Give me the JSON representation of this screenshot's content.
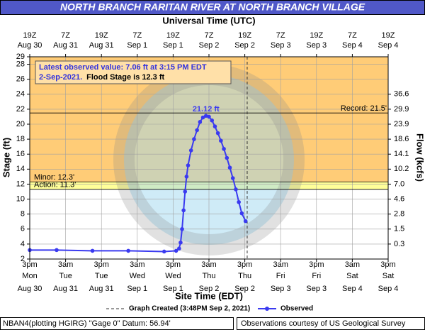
{
  "chart_data": {
    "type": "line",
    "title": "NORTH BRANCH RARITAN RIVER AT NORTH BRANCH VILLAGE",
    "x2_label": "Universal Time (UTC)",
    "x_label": "Site Time (EDT)",
    "y_label": "Stage (ft)",
    "y2_label": "Flow (kcfs)",
    "xlim": [
      "Aug 30 15:00",
      "Sep 4 15:00"
    ],
    "xticks": [
      {
        "value": "Aug 30 15:00",
        "label": [
          "3pm",
          "Mon",
          "Aug 30"
        ]
      },
      {
        "value": "Aug 31 03:00",
        "label": [
          "3am",
          "Tue",
          "Aug 31"
        ]
      },
      {
        "value": "Aug 31 15:00",
        "label": [
          "3pm",
          "Tue",
          "Aug 31"
        ]
      },
      {
        "value": "Sep 1 03:00",
        "label": [
          "3am",
          "Wed",
          "Sep 1"
        ]
      },
      {
        "value": "Sep 1 15:00",
        "label": [
          "3pm",
          "Wed",
          "Sep 1"
        ]
      },
      {
        "value": "Sep 2 03:00",
        "label": [
          "3am",
          "Thu",
          "Sep 2"
        ]
      },
      {
        "value": "Sep 2 15:00",
        "label": [
          "3pm",
          "Thu",
          "Sep 2"
        ]
      },
      {
        "value": "Sep 3 03:00",
        "label": [
          "3am",
          "Fri",
          "Sep 3"
        ]
      },
      {
        "value": "Sep 3 15:00",
        "label": [
          "3pm",
          "Fri",
          "Sep 3"
        ]
      },
      {
        "value": "Sep 4 03:00",
        "label": [
          "3am",
          "Sat",
          "Sep 4"
        ]
      },
      {
        "value": "Sep 4 15:00",
        "label": [
          "3pm",
          "Sat",
          "Sep 4"
        ]
      }
    ],
    "x2ticks": [
      {
        "value": "Aug 30 15:00",
        "label": [
          "19Z",
          "Aug 30"
        ]
      },
      {
        "value": "Aug 31 03:00",
        "label": [
          "7Z",
          "Aug 31"
        ]
      },
      {
        "value": "Aug 31 15:00",
        "label": [
          "19Z",
          "Aug 31"
        ]
      },
      {
        "value": "Sep 1 03:00",
        "label": [
          "7Z",
          "Sep 1"
        ]
      },
      {
        "value": "Sep 1 15:00",
        "label": [
          "19Z",
          "Sep 1"
        ]
      },
      {
        "value": "Sep 2 03:00",
        "label": [
          "7Z",
          "Sep 2"
        ]
      },
      {
        "value": "Sep 2 15:00",
        "label": [
          "19Z",
          "Sep 2"
        ]
      },
      {
        "value": "Sep 3 03:00",
        "label": [
          "7Z",
          "Sep 3"
        ]
      },
      {
        "value": "Sep 3 15:00",
        "label": [
          "19Z",
          "Sep 3"
        ]
      },
      {
        "value": "Sep 4 03:00",
        "label": [
          "7Z",
          "Sep 4"
        ]
      },
      {
        "value": "Sep 4 15:00",
        "label": [
          "19Z",
          "Sep 4"
        ]
      }
    ],
    "ylim": [
      2,
      29
    ],
    "yticks": [
      2,
      4,
      6,
      8,
      10,
      12,
      14,
      16,
      18,
      20,
      22,
      24,
      26,
      28,
      29
    ],
    "y2ticks": [
      0.3,
      1.5,
      2.8,
      4.6,
      {
        "value": 7,
        "label": "7.0"
      },
      10.2,
      14.1,
      18.6,
      23.9,
      29.9,
      36.6
    ],
    "grid": true,
    "thresholds": [
      {
        "label": "Record: 21.5'",
        "value": 21.5
      },
      {
        "label": "Minor: 12.3'",
        "value": 12.3,
        "color": "#ffcc77"
      },
      {
        "label": "Action: 11.3'",
        "value": 11.3,
        "color": "#ffff99"
      }
    ],
    "info": {
      "line1": "Latest observed value: 7.06 ft at 3:15 PM EDT",
      "date": "2-Sep-2021.",
      "flood_stage": "Flood Stage is 12.3 ft"
    },
    "graph_created": {
      "label": "Graph Created (3:48PM Sep 2, 2021)",
      "x": "Sep 2 15:48"
    },
    "series": [
      {
        "name": "Observed",
        "color": "#3a3af0",
        "x": [
          "Aug 30 15:00",
          "Aug 31 00:00",
          "Aug 31 12:00",
          "Sep 1 00:00",
          "Sep 1 12:00",
          "Sep 1 16:00",
          "Sep 1 17:00",
          "Sep 1 17:30",
          "Sep 1 18:00",
          "Sep 1 18:30",
          "Sep 1 19:00",
          "Sep 1 19:30",
          "Sep 1 20:00",
          "Sep 1 21:00",
          "Sep 1 22:00",
          "Sep 1 23:00",
          "Sep 2 00:00",
          "Sep 2 01:00",
          "Sep 2 02:00",
          "Sep 2 03:00",
          "Sep 2 04:00",
          "Sep 2 05:00",
          "Sep 2 06:00",
          "Sep 2 07:00",
          "Sep 2 08:00",
          "Sep 2 09:00",
          "Sep 2 10:00",
          "Sep 2 11:00",
          "Sep 2 12:00",
          "Sep 2 13:00",
          "Sep 2 14:00",
          "Sep 2 15:15"
        ],
        "values": [
          3.2,
          3.2,
          3.1,
          3.1,
          3.0,
          3.1,
          3.4,
          4.2,
          6.0,
          8.5,
          11.0,
          13.0,
          14.5,
          16.5,
          18.0,
          19.2,
          20.3,
          20.9,
          21.12,
          21.0,
          20.5,
          19.7,
          18.8,
          17.8,
          16.7,
          15.5,
          14.2,
          12.8,
          11.3,
          9.6,
          8.1,
          7.06
        ],
        "value_labels": [
          null,
          null,
          null,
          null,
          null,
          null,
          null,
          null,
          null,
          null,
          null,
          null,
          null,
          null,
          null,
          null,
          null,
          null,
          "21.12 ft",
          null,
          null,
          null,
          null,
          null,
          null,
          null,
          null,
          null,
          null,
          null,
          null,
          null
        ]
      }
    ],
    "footer_left": "NBAN4(plotting HGIRG) \"Gage 0\" Datum: 56.94'",
    "footer_right": "Observations courtesy of US Geological Survey"
  }
}
